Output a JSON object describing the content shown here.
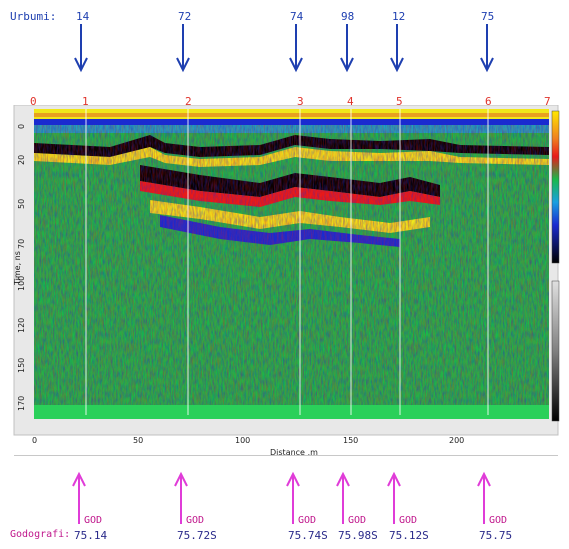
{
  "header": {
    "urbumi_label": "Urbumi:",
    "godografi_label": "Godografi:"
  },
  "top_markers": [
    "14",
    "72",
    "74",
    "98",
    "12",
    "75"
  ],
  "bottom_markers": [
    {
      "god": "GOD",
      "value": "75.14"
    },
    {
      "god": "GOD",
      "value": "75.72S"
    },
    {
      "god": "GOD",
      "value": "75.74S"
    },
    {
      "god": "GOD",
      "value": "75.98S"
    },
    {
      "god": "GOD",
      "value": "75.12S"
    },
    {
      "god": "GOD",
      "value": "75.75"
    }
  ],
  "colors": {
    "blue_arrow": "#1e3fb0",
    "magenta_arrow": "#e03cd8",
    "red_marks": "#e0342c"
  },
  "chart_data": {
    "type": "heatmap",
    "title": "",
    "xlabel": "Distance ,m",
    "ylabel": "Time, ns",
    "xlim": [
      0,
      245
    ],
    "x_ticks": [
      "0",
      "50",
      "100",
      "150",
      "200"
    ],
    "y_ticks": [
      "0",
      "20",
      "50",
      "70",
      "100",
      "120",
      "150",
      "170"
    ],
    "markers": [
      "0",
      "1",
      "2",
      "3",
      "4",
      "5",
      "6",
      "7"
    ],
    "marker_positions_m": [
      0,
      24,
      73,
      127,
      151,
      174,
      216,
      245
    ],
    "colormap": [
      "#000000",
      "#1a2bd0",
      "#1aa0e0",
      "#1ab84a",
      "#f0e81a",
      "#ffffff",
      "#e81a1a"
    ],
    "grid": false
  }
}
